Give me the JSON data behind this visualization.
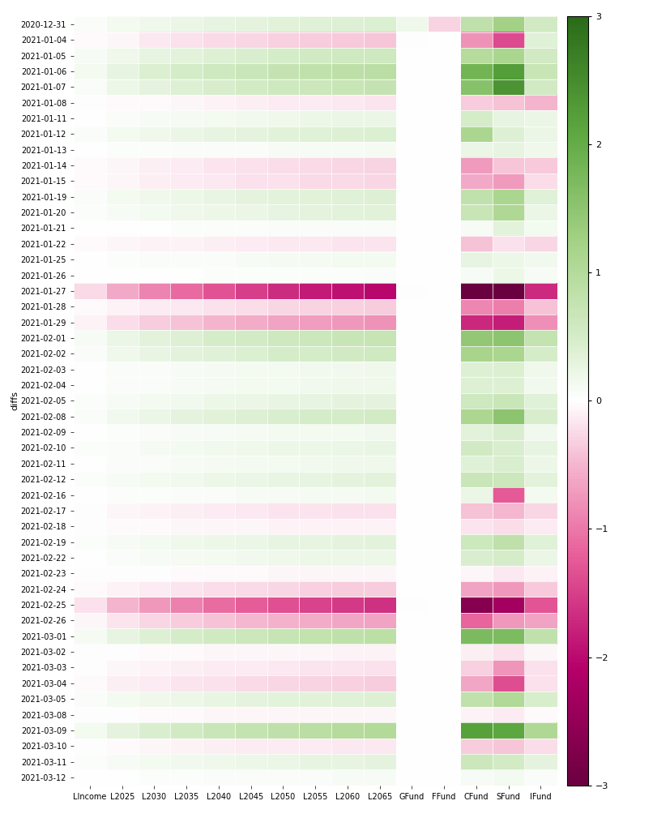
{
  "dates": [
    "2020-12-31",
    "2021-01-04",
    "2021-01-05",
    "2021-01-06",
    "2021-01-07",
    "2021-01-08",
    "2021-01-11",
    "2021-01-12",
    "2021-01-13",
    "2021-01-14",
    "2021-01-15",
    "2021-01-19",
    "2021-01-20",
    "2021-01-21",
    "2021-01-22",
    "2021-01-25",
    "2021-01-26",
    "2021-01-27",
    "2021-01-28",
    "2021-01-29",
    "2021-02-01",
    "2021-02-02",
    "2021-02-03",
    "2021-02-04",
    "2021-02-05",
    "2021-02-08",
    "2021-02-09",
    "2021-02-10",
    "2021-02-11",
    "2021-02-12",
    "2021-02-16",
    "2021-02-17",
    "2021-02-18",
    "2021-02-19",
    "2021-02-22",
    "2021-02-23",
    "2021-02-24",
    "2021-02-25",
    "2021-02-26",
    "2021-03-01",
    "2021-03-02",
    "2021-03-03",
    "2021-03-04",
    "2021-03-05",
    "2021-03-08",
    "2021-03-09",
    "2021-03-10",
    "2021-03-11",
    "2021-03-12"
  ],
  "columns": [
    "LIncome",
    "L2025",
    "L2030",
    "L2035",
    "L2040",
    "L2045",
    "L2050",
    "L2055",
    "L2060",
    "L2065",
    "GFund",
    "FFund",
    "CFund",
    "SFund",
    "IFund"
  ],
  "data": [
    [
      0.05,
      0.13,
      0.18,
      0.22,
      0.26,
      0.3,
      0.33,
      0.36,
      0.38,
      0.4,
      0.17,
      -0.3,
      0.83,
      1.26,
      0.55
    ],
    [
      -0.04,
      -0.07,
      -0.15,
      -0.19,
      -0.24,
      -0.28,
      -0.31,
      -0.35,
      -0.37,
      -0.39,
      -0.02,
      0.0,
      -0.79,
      -1.4,
      0.36
    ],
    [
      0.08,
      0.18,
      0.26,
      0.32,
      0.38,
      0.44,
      0.49,
      0.54,
      0.57,
      0.6,
      0.01,
      0.0,
      0.97,
      1.13,
      0.55
    ],
    [
      0.12,
      0.28,
      0.4,
      0.5,
      0.59,
      0.67,
      0.74,
      0.81,
      0.86,
      0.9,
      0.01,
      0.0,
      1.83,
      2.23,
      0.7
    ],
    [
      0.07,
      0.2,
      0.3,
      0.38,
      0.46,
      0.53,
      0.59,
      0.65,
      0.69,
      0.73,
      0.01,
      0.0,
      1.59,
      2.39,
      0.55
    ],
    [
      -0.02,
      -0.03,
      -0.04,
      -0.06,
      -0.08,
      -0.1,
      -0.12,
      -0.14,
      -0.15,
      -0.17,
      0.01,
      0.0,
      -0.34,
      -0.41,
      -0.5
    ],
    [
      0.02,
      0.06,
      0.09,
      0.11,
      0.14,
      0.16,
      0.18,
      0.2,
      0.22,
      0.23,
      0.01,
      0.0,
      0.48,
      0.28,
      0.23
    ],
    [
      0.06,
      0.13,
      0.18,
      0.22,
      0.26,
      0.3,
      0.34,
      0.37,
      0.39,
      0.41,
      0.01,
      0.0,
      1.13,
      0.39,
      0.23
    ],
    [
      0.01,
      0.03,
      0.04,
      0.05,
      0.06,
      0.07,
      0.08,
      0.09,
      0.09,
      0.1,
      0.01,
      0.0,
      0.23,
      0.26,
      0.17
    ],
    [
      -0.03,
      -0.07,
      -0.11,
      -0.14,
      -0.17,
      -0.2,
      -0.23,
      -0.25,
      -0.27,
      -0.29,
      0.01,
      0.0,
      -0.72,
      -0.38,
      -0.36
    ],
    [
      -0.03,
      -0.07,
      -0.11,
      -0.13,
      -0.16,
      -0.19,
      -0.21,
      -0.24,
      -0.25,
      -0.27,
      0.0,
      0.0,
      -0.59,
      -0.72,
      -0.23
    ],
    [
      0.05,
      0.12,
      0.17,
      0.21,
      0.25,
      0.29,
      0.32,
      0.35,
      0.37,
      0.39,
      0.01,
      0.0,
      0.82,
      1.13,
      0.36
    ],
    [
      0.04,
      0.09,
      0.13,
      0.17,
      0.2,
      0.23,
      0.26,
      0.29,
      0.31,
      0.33,
      0.01,
      0.0,
      0.69,
      1.07,
      0.23
    ],
    [
      0.01,
      0.02,
      0.02,
      0.03,
      0.04,
      0.04,
      0.05,
      0.06,
      0.06,
      0.06,
      0.01,
      0.0,
      0.09,
      0.32,
      0.14
    ],
    [
      -0.03,
      -0.05,
      -0.08,
      -0.09,
      -0.11,
      -0.13,
      -0.15,
      -0.16,
      -0.17,
      -0.18,
      0.0,
      0.0,
      -0.4,
      -0.21,
      -0.27
    ],
    [
      0.01,
      0.03,
      0.05,
      0.06,
      0.07,
      0.09,
      0.1,
      0.11,
      0.12,
      0.12,
      0.01,
      0.0,
      0.27,
      0.19,
      0.16
    ],
    [
      0.0,
      0.01,
      0.02,
      0.02,
      0.03,
      0.03,
      0.04,
      0.04,
      0.04,
      0.05,
      0.0,
      0.0,
      0.09,
      0.21,
      0.09
    ],
    [
      -0.25,
      -0.6,
      -0.9,
      -1.12,
      -1.33,
      -1.52,
      -1.68,
      -1.83,
      -1.94,
      -2.03,
      -0.01,
      0.0,
      -3.63,
      -3.56,
      -1.71
    ],
    [
      -0.03,
      -0.08,
      -0.12,
      -0.16,
      -0.19,
      -0.23,
      -0.26,
      -0.29,
      -0.31,
      -0.33,
      0.01,
      0.0,
      -0.88,
      -0.95,
      -0.4
    ],
    [
      -0.09,
      -0.22,
      -0.33,
      -0.42,
      -0.5,
      -0.58,
      -0.64,
      -0.7,
      -0.75,
      -0.79,
      0.01,
      0.0,
      -1.73,
      -1.81,
      -0.82
    ],
    [
      0.09,
      0.22,
      0.32,
      0.39,
      0.47,
      0.53,
      0.59,
      0.64,
      0.68,
      0.72,
      0.01,
      0.0,
      1.44,
      1.52,
      0.77
    ],
    [
      0.07,
      0.17,
      0.25,
      0.31,
      0.37,
      0.42,
      0.47,
      0.51,
      0.54,
      0.57,
      0.01,
      0.0,
      1.18,
      1.14,
      0.49
    ],
    [
      0.02,
      0.05,
      0.07,
      0.09,
      0.11,
      0.12,
      0.14,
      0.15,
      0.16,
      0.17,
      0.01,
      0.0,
      0.38,
      0.4,
      0.18
    ],
    [
      0.02,
      0.05,
      0.07,
      0.09,
      0.11,
      0.13,
      0.14,
      0.16,
      0.17,
      0.18,
      0.01,
      0.0,
      0.39,
      0.38,
      0.15
    ],
    [
      0.04,
      0.09,
      0.13,
      0.16,
      0.19,
      0.22,
      0.25,
      0.27,
      0.29,
      0.3,
      0.01,
      0.0,
      0.6,
      0.67,
      0.36
    ],
    [
      0.07,
      0.16,
      0.23,
      0.29,
      0.34,
      0.39,
      0.43,
      0.47,
      0.5,
      0.52,
      0.01,
      0.0,
      1.11,
      1.52,
      0.45
    ],
    [
      0.02,
      0.04,
      0.06,
      0.08,
      0.09,
      0.11,
      0.12,
      0.14,
      0.14,
      0.15,
      0.01,
      0.0,
      0.31,
      0.44,
      0.15
    ],
    [
      0.03,
      0.07,
      0.1,
      0.13,
      0.15,
      0.17,
      0.19,
      0.21,
      0.23,
      0.24,
      0.01,
      0.0,
      0.55,
      0.44,
      0.27
    ],
    [
      0.02,
      0.05,
      0.07,
      0.09,
      0.11,
      0.13,
      0.14,
      0.16,
      0.17,
      0.18,
      0.01,
      0.0,
      0.36,
      0.44,
      0.21
    ],
    [
      0.04,
      0.09,
      0.13,
      0.16,
      0.2,
      0.23,
      0.25,
      0.28,
      0.3,
      0.31,
      0.01,
      0.0,
      0.67,
      0.65,
      0.32
    ],
    [
      0.01,
      0.03,
      0.04,
      0.06,
      0.07,
      0.08,
      0.09,
      0.1,
      0.11,
      0.12,
      0.01,
      0.0,
      0.22,
      -1.25,
      0.12
    ],
    [
      -0.02,
      -0.06,
      -0.09,
      -0.11,
      -0.13,
      -0.15,
      -0.17,
      -0.18,
      -0.19,
      -0.2,
      0.0,
      0.0,
      -0.41,
      -0.47,
      -0.28
    ],
    [
      -0.01,
      -0.03,
      -0.04,
      -0.05,
      -0.06,
      -0.07,
      -0.08,
      -0.08,
      -0.09,
      -0.09,
      0.0,
      0.0,
      -0.18,
      -0.22,
      -0.12
    ],
    [
      0.04,
      0.09,
      0.14,
      0.17,
      0.2,
      0.23,
      0.26,
      0.28,
      0.3,
      0.31,
      0.01,
      0.0,
      0.62,
      0.84,
      0.36
    ],
    [
      0.02,
      0.06,
      0.09,
      0.11,
      0.13,
      0.15,
      0.17,
      0.19,
      0.2,
      0.21,
      0.0,
      0.0,
      0.43,
      0.47,
      0.22
    ],
    [
      -0.01,
      -0.01,
      -0.02,
      -0.03,
      -0.03,
      -0.04,
      -0.05,
      -0.05,
      -0.05,
      -0.06,
      0.0,
      0.0,
      -0.07,
      -0.16,
      -0.08
    ],
    [
      -0.04,
      -0.09,
      -0.14,
      -0.18,
      -0.22,
      -0.25,
      -0.28,
      -0.31,
      -0.33,
      -0.35,
      0.0,
      0.0,
      -0.64,
      -0.75,
      -0.37
    ],
    [
      -0.2,
      -0.5,
      -0.74,
      -0.92,
      -1.08,
      -1.23,
      -1.35,
      -1.47,
      -1.55,
      -1.62,
      -0.01,
      0.0,
      -2.67,
      -2.31,
      -1.31
    ],
    [
      -0.07,
      -0.18,
      -0.28,
      -0.35,
      -0.42,
      -0.48,
      -0.53,
      -0.58,
      -0.62,
      -0.65,
      0.01,
      0.0,
      -1.17,
      -0.75,
      -0.64
    ],
    [
      0.1,
      0.26,
      0.38,
      0.48,
      0.57,
      0.65,
      0.72,
      0.79,
      0.84,
      0.88,
      0.01,
      0.0,
      1.72,
      1.7,
      0.82
    ],
    [
      -0.01,
      -0.02,
      -0.03,
      -0.04,
      -0.05,
      -0.06,
      -0.06,
      -0.07,
      -0.08,
      -0.08,
      0.0,
      0.0,
      -0.11,
      -0.21,
      -0.07
    ],
    [
      -0.02,
      -0.05,
      -0.08,
      -0.1,
      -0.12,
      -0.14,
      -0.16,
      -0.17,
      -0.18,
      -0.19,
      0.0,
      0.0,
      -0.32,
      -0.76,
      -0.2
    ],
    [
      -0.04,
      -0.1,
      -0.14,
      -0.18,
      -0.21,
      -0.24,
      -0.27,
      -0.29,
      -0.31,
      -0.33,
      0.0,
      0.0,
      -0.63,
      -1.36,
      -0.19
    ],
    [
      0.05,
      0.12,
      0.17,
      0.21,
      0.25,
      0.29,
      0.32,
      0.35,
      0.37,
      0.39,
      0.01,
      0.0,
      0.82,
      1.05,
      0.46
    ],
    [
      -0.01,
      -0.02,
      -0.03,
      -0.04,
      -0.05,
      -0.05,
      -0.06,
      -0.07,
      -0.07,
      -0.07,
      0.0,
      0.0,
      -0.08,
      -0.14,
      -0.04
    ],
    [
      0.12,
      0.3,
      0.44,
      0.55,
      0.66,
      0.75,
      0.83,
      0.91,
      0.97,
      1.02,
      0.01,
      0.0,
      2.18,
      2.09,
      1.07
    ],
    [
      -0.02,
      -0.04,
      -0.07,
      -0.08,
      -0.1,
      -0.12,
      -0.13,
      -0.14,
      -0.15,
      -0.16,
      0.0,
      0.0,
      -0.34,
      -0.38,
      -0.22
    ],
    [
      0.03,
      0.08,
      0.12,
      0.15,
      0.18,
      0.21,
      0.23,
      0.26,
      0.27,
      0.29,
      0.01,
      0.0,
      0.64,
      0.53,
      0.29
    ],
    [
      0.01,
      0.02,
      0.03,
      0.04,
      0.05,
      0.06,
      0.07,
      0.07,
      0.08,
      0.08,
      0.0,
      0.0,
      0.08,
      0.14,
      0.05
    ]
  ],
  "colorbar_label": "diffs",
  "vmin": -3,
  "vmax": 3,
  "figsize": [
    8.28,
    10.09
  ],
  "dpi": 100,
  "tick_fontsize": 7,
  "cbar_fontsize": 8,
  "ylabel_fontsize": 8,
  "background_color": "#f5f5f5"
}
